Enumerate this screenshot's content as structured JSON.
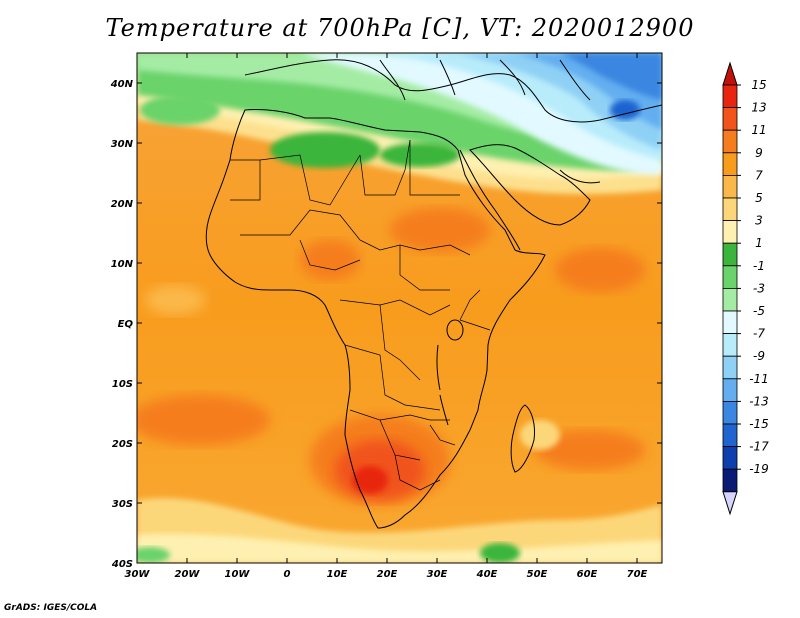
{
  "title": "Temperature at 700hPa [C], VT: 2020012900",
  "credit": "GrADS: IGES/COLA",
  "map": {
    "lon_ticks": [
      "30W",
      "20W",
      "10W",
      "0",
      "10E",
      "20E",
      "30E",
      "40E",
      "50E",
      "60E",
      "70E"
    ],
    "lat_ticks": [
      "40N",
      "30N",
      "20N",
      "10N",
      "EQ",
      "10S",
      "20S",
      "30S",
      "40S"
    ],
    "lon_range": [
      -30,
      75
    ],
    "lat_range": [
      -40,
      45
    ]
  },
  "colorbar": {
    "labels": [
      "15",
      "13",
      "11",
      "9",
      "7",
      "5",
      "3",
      "1",
      "-1",
      "-3",
      "-5",
      "-7",
      "-9",
      "-11",
      "-13",
      "-15",
      "-17",
      "-19"
    ],
    "colors": [
      "#e8260f",
      "#f1531a",
      "#f57d1e",
      "#f89c1d",
      "#fbb84a",
      "#fcd77a",
      "#fef0b0",
      "#3bb53b",
      "#6bd36b",
      "#a4eca4",
      "#e2f9ff",
      "#b8ecfb",
      "#8fd0f5",
      "#63aef0",
      "#3b86e0",
      "#1f64cf",
      "#0e3fae",
      "#0b1a75"
    ],
    "top_arrow_color": "#c0120a",
    "bottom_arrow_color": "#d4d4ff"
  }
}
